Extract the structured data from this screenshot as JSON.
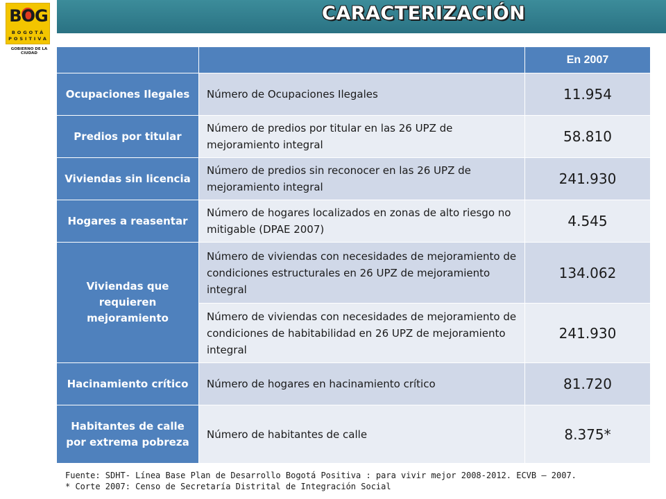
{
  "logo": {
    "name": "BOG",
    "line1": "BOGOTÁ",
    "line2": "POSITIVA",
    "tagline": "GOBIERNO DE LA CIUDAD"
  },
  "title": "CARACTERIZACIÓN",
  "table": {
    "header": [
      "",
      "",
      "En 2007"
    ],
    "rows": [
      {
        "category": "Ocupaciones Ilegales",
        "description": "Número de Ocupaciones Ilegales",
        "value": "11.954"
      },
      {
        "category": "Predios por titular",
        "description": "Número de predios por titular en las 26 UPZ de mejoramiento integral",
        "value": "58.810"
      },
      {
        "category": "Viviendas sin licencia",
        "description": "Número de predios sin reconocer en las 26 UPZ de mejoramiento integral",
        "value": "241.930"
      },
      {
        "category": "Hogares a reasentar",
        "description": "Número de hogares localizados en zonas de alto riesgo no mitigable (DPAE 2007)",
        "value": "4.545"
      },
      {
        "category": "Viviendas que requieren mejoramiento",
        "description": "Número de viviendas con necesidades de mejoramiento de condiciones estructurales en 26 UPZ de mejoramiento integral",
        "value": "134.062"
      },
      {
        "category": "",
        "description": "Número de viviendas con necesidades de mejoramiento de condiciones de habitabilidad en 26 UPZ de mejoramiento integral",
        "value": "241.930"
      },
      {
        "category": "Hacinamiento crítico",
        "description": "Número de hogares en hacinamiento crítico",
        "value": "81.720"
      },
      {
        "category": "Habitantes de calle por extrema pobreza",
        "description": "Número de habitantes de calle",
        "value": "8.375*"
      }
    ]
  },
  "footnote": {
    "source": "Fuente: SDHT- Línea Base Plan de Desarrollo Bogotá Positiva : para vivir mejor 2008-2012. ECVB – 2007.",
    "note": "* Corte 2007: Censo de Secretaría Distrital de Integración Social"
  }
}
